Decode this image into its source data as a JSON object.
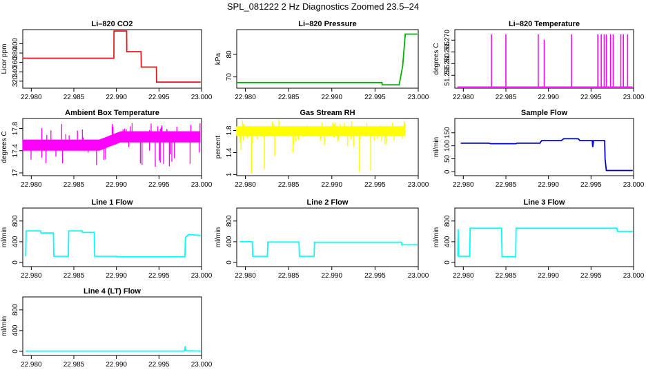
{
  "figure_title": "SPL_081222  2 Hz Diagnostics Zoomed 23.5–24",
  "chart_data": [
    {
      "type": "line",
      "title": "Li–820 CO2",
      "ylabel": "Licor ppm",
      "color": "#e41a1c",
      "xlim": [
        22.979,
        23.0
      ],
      "ylim": [
        305,
        430
      ],
      "x_ticks": [
        "22.980",
        "22.985",
        "22.990",
        "22.995",
        "23.000"
      ],
      "y_ticks": [
        320,
        340,
        360,
        380,
        400
      ],
      "series": [
        {
          "x": [
            22.979,
            22.9897,
            22.98972,
            22.9912,
            22.99122,
            22.9929,
            22.99292,
            22.9947,
            22.99472,
            22.9999
          ],
          "y": [
            369,
            369,
            427,
            427,
            383,
            383,
            350,
            350,
            318,
            318
          ]
        }
      ]
    },
    {
      "type": "line",
      "title": "Li–820 Pressure",
      "ylabel": "kPa",
      "color": "#00b000",
      "xlim": [
        22.979,
        23.0
      ],
      "ylim": [
        65,
        91
      ],
      "x_ticks": [
        "22.980",
        "22.985",
        "22.990",
        "22.995",
        "23.000"
      ],
      "y_ticks": [
        70,
        80
      ],
      "series": [
        {
          "x": [
            22.979,
            22.9958,
            22.99582,
            22.9978,
            22.9982,
            22.9985,
            22.9999
          ],
          "y": [
            67.5,
            67.5,
            66.5,
            66.5,
            75,
            89,
            89
          ]
        }
      ]
    },
    {
      "type": "line",
      "title": "Li–820 Temperature",
      "ylabel": "degrees C",
      "color": "#ff00ff",
      "xlim": [
        22.979,
        23.0
      ],
      "ylim": [
        51.2495,
        51.2745
      ],
      "x_ticks": [
        "22.980",
        "22.985",
        "22.990",
        "22.995",
        "23.000"
      ],
      "y_ticks": [
        "51.255",
        "51.260",
        "51.265",
        "51.270"
      ],
      "baseline": 51.25,
      "spikes": [
        {
          "x": 22.9833,
          "y": 51.2725
        },
        {
          "x": 22.985,
          "y": 51.2725
        },
        {
          "x": 22.9888,
          "y": 51.2725
        },
        {
          "x": 22.9895,
          "y": 51.2702
        },
        {
          "x": 22.9927,
          "y": 51.2725
        },
        {
          "x": 22.9958,
          "y": 51.2725
        },
        {
          "x": 22.9962,
          "y": 51.2725
        },
        {
          "x": 22.99655,
          "y": 51.2725
        },
        {
          "x": 22.9968,
          "y": 51.2725
        },
        {
          "x": 22.9973,
          "y": 51.2725
        },
        {
          "x": 22.9976,
          "y": 51.2725
        },
        {
          "x": 22.9985,
          "y": 51.2725
        },
        {
          "x": 22.9988,
          "y": 51.2725
        },
        {
          "x": 22.9993,
          "y": 51.2725
        }
      ]
    },
    {
      "type": "line",
      "title": "Ambient Box Temperature",
      "ylabel": "degrees C",
      "color": "#ff00ff",
      "xlim": [
        22.979,
        23.0
      ],
      "ylim": [
        16.95,
        17.98
      ],
      "x_ticks": [
        "22.980",
        "22.985",
        "22.990",
        "22.995",
        "23.000"
      ],
      "y_ticks": [
        17.0,
        17.4,
        17.8
      ],
      "band": {
        "x": [
          22.979,
          22.988,
          22.9905,
          22.9999
        ],
        "low": [
          17.4,
          17.4,
          17.55,
          17.55
        ],
        "high": [
          17.6,
          17.6,
          17.75,
          17.75
        ],
        "spike_low": 17.1,
        "spike_high": 17.9
      }
    },
    {
      "type": "line",
      "title": "Gas Stream RH",
      "ylabel": "percent",
      "color": "#ffff00",
      "xlim": [
        22.979,
        23.0
      ],
      "ylim": [
        0.98,
        2.02
      ],
      "x_ticks": [
        "22.980",
        "22.985",
        "22.990",
        "22.995",
        "23.000"
      ],
      "y_ticks": [
        1.0,
        1.4,
        1.8
      ],
      "band": {
        "x": [
          22.979,
          22.9985
        ],
        "low": [
          1.7,
          1.7
        ],
        "high": [
          1.88,
          1.88
        ],
        "spike_low": 1.5,
        "spike_high": 2.0
      },
      "dips": [
        {
          "x": 22.9795,
          "y": 1.45
        },
        {
          "x": 22.9807,
          "y": 1.02
        },
        {
          "x": 22.9822,
          "y": 1.1
        },
        {
          "x": 22.9834,
          "y": 1.35
        },
        {
          "x": 22.9855,
          "y": 1.4
        },
        {
          "x": 22.9932,
          "y": 1.05
        },
        {
          "x": 22.9945,
          "y": 1.08
        },
        {
          "x": 22.9963,
          "y": 1.55
        }
      ]
    },
    {
      "type": "line",
      "title": "Sample Flow",
      "ylabel": "ml/min",
      "color": "#0000cd",
      "xlim": [
        22.979,
        23.0
      ],
      "ylim": [
        -15,
        205
      ],
      "x_ticks": [
        "22.980",
        "22.985",
        "22.990",
        "22.995",
        "23.000"
      ],
      "y_ticks": [
        0,
        50,
        100,
        150
      ],
      "series": [
        {
          "x": [
            22.9797,
            22.983,
            22.9832,
            22.9862,
            22.9863,
            22.989,
            22.9892,
            22.9915,
            22.9918,
            22.9935,
            22.9937,
            22.99515,
            22.9952,
            22.9953,
            22.9966,
            22.99665,
            22.9968,
            22.9999
          ],
          "y": [
            110,
            110,
            108,
            108,
            110,
            110,
            120,
            120,
            127,
            127,
            120,
            120,
            95,
            120,
            120,
            50,
            5,
            5
          ]
        }
      ]
    },
    {
      "type": "line",
      "title": "Line 1 Flow",
      "ylabel": "ml/min",
      "color": "#00ffff",
      "xlim": [
        22.979,
        23.0
      ],
      "ylim": [
        -80,
        1050
      ],
      "x_ticks": [
        "22.980",
        "22.985",
        "22.990",
        "22.995",
        "23.000"
      ],
      "y_ticks": [
        0,
        400,
        800
      ],
      "series": [
        {
          "x": [
            22.97935,
            22.9794,
            22.9811,
            22.98115,
            22.9826,
            22.98265,
            22.98435,
            22.9844,
            22.98595,
            22.986,
            22.9874,
            22.98745,
            22.99,
            22.99005,
            22.99805,
            22.9981,
            22.9985,
            22.9999
          ],
          "y": [
            120,
            610,
            610,
            570,
            570,
            120,
            120,
            610,
            610,
            580,
            580,
            120,
            120,
            110,
            110,
            480,
            540,
            520
          ]
        }
      ]
    },
    {
      "type": "line",
      "title": "Line 2 Flow",
      "ylabel": "ml/min",
      "color": "#00ffff",
      "xlim": [
        22.979,
        23.0
      ],
      "ylim": [
        -80,
        1050
      ],
      "x_ticks": [
        "22.980",
        "22.985",
        "22.990",
        "22.995",
        "23.000"
      ],
      "y_ticks": [
        0,
        400,
        800
      ],
      "series": [
        {
          "x": [
            22.97935,
            22.9808,
            22.98085,
            22.98255,
            22.9826,
            22.9862,
            22.98625,
            22.98795,
            22.988,
            22.99805,
            22.9981,
            22.9999
          ],
          "y": [
            400,
            400,
            120,
            120,
            395,
            395,
            120,
            120,
            390,
            390,
            340,
            340
          ]
        }
      ]
    },
    {
      "type": "line",
      "title": "Line 3 Flow",
      "ylabel": "ml/min",
      "color": "#00ffff",
      "xlim": [
        22.979,
        23.0
      ],
      "ylim": [
        -80,
        1050
      ],
      "x_ticks": [
        "22.980",
        "22.985",
        "22.990",
        "22.995",
        "23.000"
      ],
      "y_ticks": [
        0,
        400,
        800
      ],
      "series": [
        {
          "x": [
            22.97935,
            22.9794,
            22.97945,
            22.98075,
            22.9808,
            22.9845,
            22.98455,
            22.98615,
            22.9862,
            22.99805,
            22.9981,
            22.9999
          ],
          "y": [
            120,
            640,
            120,
            120,
            660,
            660,
            110,
            110,
            660,
            660,
            600,
            600
          ]
        }
      ]
    },
    {
      "type": "line",
      "title": "Line 4 (LT) Flow",
      "ylabel": "ml/min",
      "color": "#00ffff",
      "xlim": [
        22.979,
        23.0
      ],
      "ylim": [
        -80,
        1050
      ],
      "x_ticks": [
        "22.980",
        "22.985",
        "22.990",
        "22.995",
        "23.000"
      ],
      "y_ticks": [
        0,
        400,
        800
      ],
      "series": [
        {
          "x": [
            22.97935,
            22.998,
            22.9981,
            22.99815,
            22.9999
          ],
          "y": [
            5,
            5,
            100,
            10,
            5
          ]
        }
      ]
    }
  ]
}
